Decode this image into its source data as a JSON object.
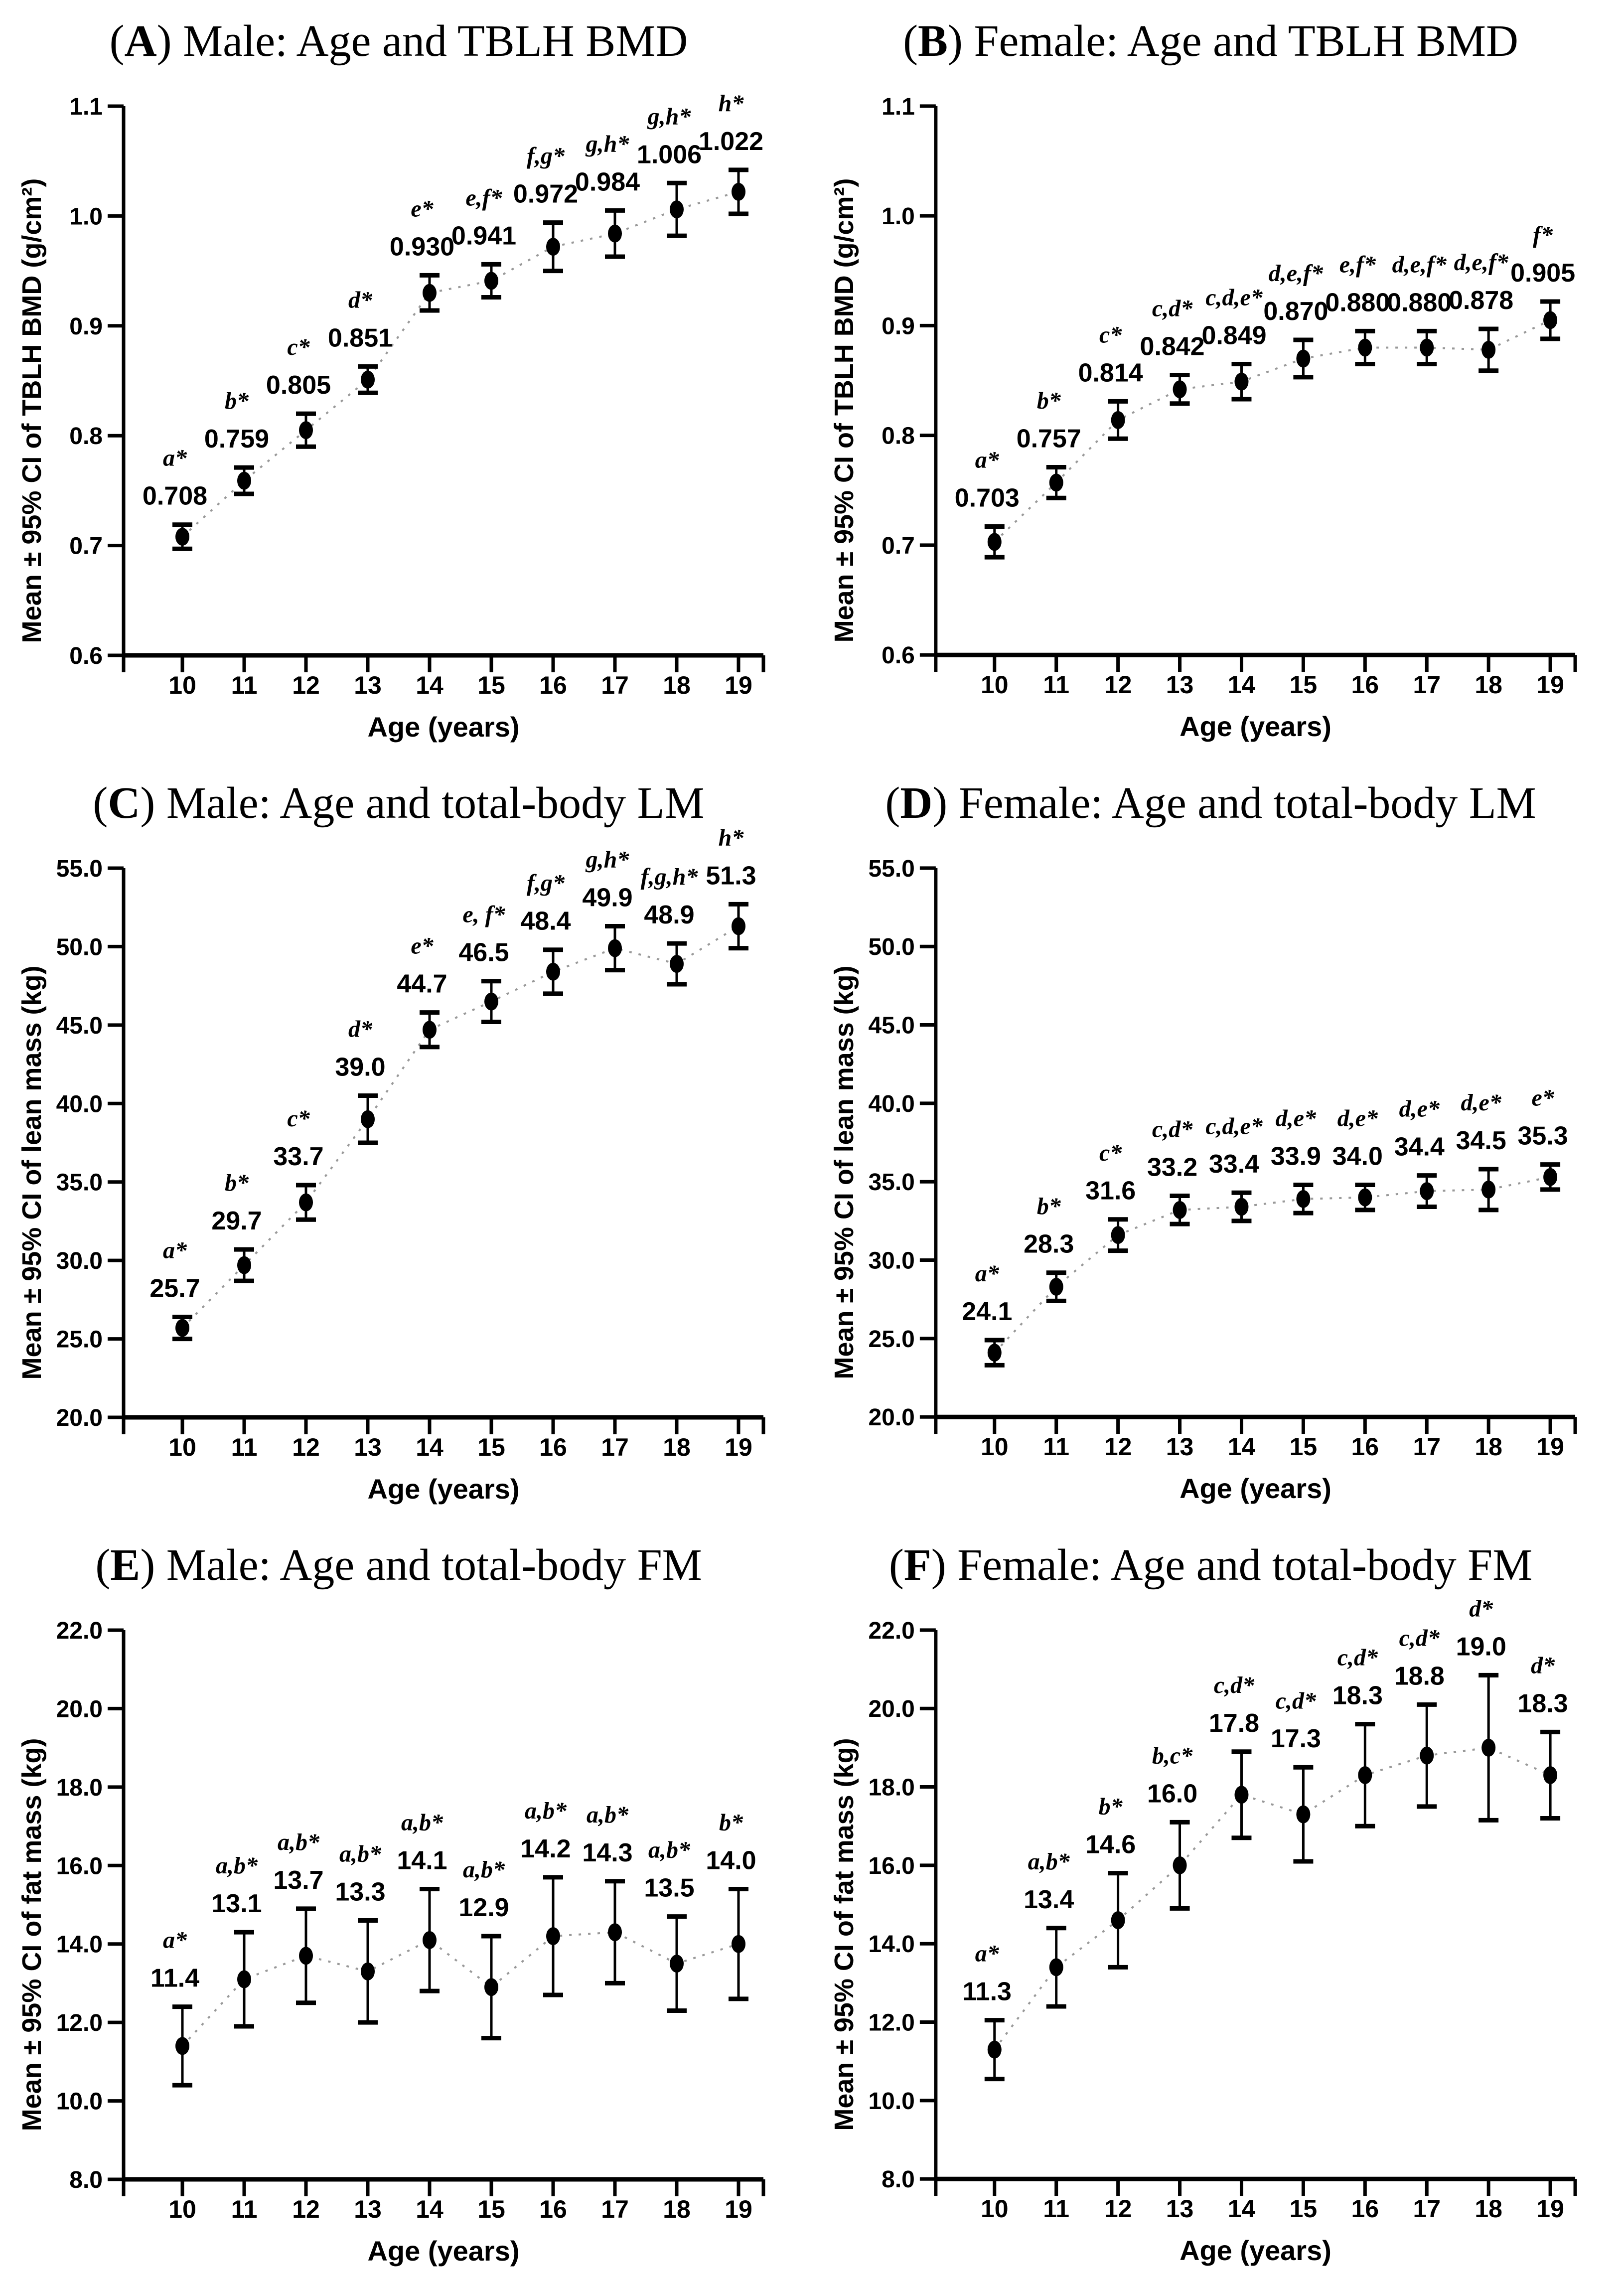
{
  "page": {
    "background": "#ffffff",
    "text_color": "#000000",
    "trend_line_color": "#999999",
    "x_axis_title": "Age (years)"
  },
  "chart_data": [
    {
      "panel": "A",
      "type": "line",
      "title": {
        "prefix": "(",
        "letter": "A",
        "suffix": ") Male: Age and TBLH BMD"
      },
      "xlabel": "Age (years)",
      "ylabel": "Mean ± 95% CI of TBLH BMD (g/cm²)",
      "x": [
        10,
        11,
        12,
        13,
        14,
        15,
        16,
        17,
        18,
        19
      ],
      "xtick_labels": [
        "10",
        "11",
        "12",
        "13",
        "14",
        "15",
        "16",
        "17",
        "18",
        "19"
      ],
      "ylim": [
        0.6,
        1.1
      ],
      "ytick_values": [
        1.1,
        1.0,
        0.9,
        0.8,
        0.7,
        0.6
      ],
      "ytick_labels": [
        "1.1",
        "1.0",
        "0.9",
        "0.8",
        "0.7",
        "0.6"
      ],
      "grid": false,
      "legend": false,
      "series": [
        {
          "name": "mean",
          "values": [
            0.708,
            0.759,
            0.805,
            0.851,
            0.93,
            0.941,
            0.972,
            0.984,
            1.006,
            1.022
          ],
          "ci_halfwidth": [
            0.011,
            0.012,
            0.015,
            0.012,
            0.016,
            0.015,
            0.022,
            0.021,
            0.024,
            0.02
          ],
          "point_labels": [
            "0.708",
            "0.759",
            "0.805",
            "0.851",
            "0.930",
            "0.941",
            "0.972",
            "0.984",
            "1.006",
            "1.022"
          ],
          "sig_letters": [
            "a*",
            "b*",
            "c*",
            "d*",
            "e*",
            "e,f*",
            "f,g*",
            "g,h*",
            "g,h*",
            "h*"
          ]
        }
      ]
    },
    {
      "panel": "B",
      "type": "line",
      "title": {
        "prefix": "(",
        "letter": "B",
        "suffix": ") Female: Age and TBLH BMD"
      },
      "xlabel": "Age (years)",
      "ylabel": "Mean ± 95% CI of TBLH BMD (g/cm²)",
      "x": [
        10,
        11,
        12,
        13,
        14,
        15,
        16,
        17,
        18,
        19
      ],
      "xtick_labels": [
        "10",
        "11",
        "12",
        "13",
        "14",
        "15",
        "16",
        "17",
        "18",
        "19"
      ],
      "ylim": [
        0.6,
        1.1
      ],
      "ytick_values": [
        1.1,
        1.0,
        0.9,
        0.8,
        0.7,
        0.6
      ],
      "ytick_labels": [
        "1.1",
        "1.0",
        "0.9",
        "0.8",
        "0.7",
        "0.6"
      ],
      "grid": false,
      "legend": false,
      "series": [
        {
          "name": "mean",
          "values": [
            0.703,
            0.757,
            0.814,
            0.842,
            0.849,
            0.87,
            0.88,
            0.88,
            0.878,
            0.905
          ],
          "ci_halfwidth": [
            0.014,
            0.014,
            0.017,
            0.013,
            0.016,
            0.017,
            0.015,
            0.015,
            0.019,
            0.017
          ],
          "point_labels": [
            "0.703",
            "0.757",
            "0.814",
            "0.842",
            "0.849",
            "0.870",
            "0.880",
            "0.880",
            "0.878",
            "0.905"
          ],
          "sig_letters": [
            "a*",
            "b*",
            "c*",
            "c,d*",
            "c,d,e*",
            "d,e,f*",
            "e,f*",
            "d,e,f*",
            "d,e,f*",
            "f*"
          ]
        }
      ]
    },
    {
      "panel": "C",
      "type": "line",
      "title": {
        "prefix": "(",
        "letter": "C",
        "suffix": ") Male: Age and total-body LM"
      },
      "xlabel": "Age (years)",
      "ylabel": "Mean ± 95% CI of lean mass (kg)",
      "x": [
        10,
        11,
        12,
        13,
        14,
        15,
        16,
        17,
        18,
        19
      ],
      "xtick_labels": [
        "10",
        "11",
        "12",
        "13",
        "14",
        "15",
        "16",
        "17",
        "18",
        "19"
      ],
      "ylim": [
        20.0,
        55.0
      ],
      "ytick_values": [
        55.0,
        50.0,
        45.0,
        40.0,
        35.0,
        30.0,
        25.0,
        20.0
      ],
      "ytick_labels": [
        "55.0",
        "50.0",
        "45.0",
        "40.0",
        "35.0",
        "30.0",
        "25.0",
        "20.0"
      ],
      "grid": false,
      "legend": false,
      "series": [
        {
          "name": "mean",
          "values": [
            25.7,
            29.7,
            33.7,
            39.0,
            44.7,
            46.5,
            48.4,
            49.9,
            48.9,
            51.3
          ],
          "ci_halfwidth": [
            0.7,
            1.0,
            1.1,
            1.5,
            1.1,
            1.3,
            1.4,
            1.4,
            1.3,
            1.4
          ],
          "point_labels": [
            "25.7",
            "29.7",
            "33.7",
            "39.0",
            "44.7",
            "46.5",
            "48.4",
            "49.9",
            "48.9",
            "51.3"
          ],
          "sig_letters": [
            "a*",
            "b*",
            "c*",
            "d*",
            "e*",
            "e, f*",
            "f,g*",
            "g,h*",
            "f,g,h*",
            "h*"
          ]
        }
      ]
    },
    {
      "panel": "D",
      "type": "line",
      "title": {
        "prefix": "(",
        "letter": "D",
        "suffix": ") Female: Age and total-body LM"
      },
      "xlabel": "Age (years)",
      "ylabel": "Mean ± 95% CI of lean mass (kg)",
      "x": [
        10,
        11,
        12,
        13,
        14,
        15,
        16,
        17,
        18,
        19
      ],
      "xtick_labels": [
        "10",
        "11",
        "12",
        "13",
        "14",
        "15",
        "16",
        "17",
        "18",
        "19"
      ],
      "ylim": [
        20.0,
        55.0
      ],
      "ytick_values": [
        55.0,
        50.0,
        45.0,
        40.0,
        35.0,
        30.0,
        25.0,
        20.0
      ],
      "ytick_labels": [
        "55.0",
        "50.0",
        "45.0",
        "40.0",
        "35.0",
        "30.0",
        "25.0",
        "20.0"
      ],
      "grid": false,
      "legend": false,
      "series": [
        {
          "name": "mean",
          "values": [
            24.1,
            28.3,
            31.6,
            33.2,
            33.4,
            33.9,
            34.0,
            34.4,
            34.5,
            35.3
          ],
          "ci_halfwidth": [
            0.8,
            0.9,
            1.0,
            0.9,
            0.9,
            0.9,
            0.8,
            1.0,
            1.3,
            0.8
          ],
          "point_labels": [
            "24.1",
            "28.3",
            "31.6",
            "33.2",
            "33.4",
            "33.9",
            "34.0",
            "34.4",
            "34.5",
            "35.3"
          ],
          "sig_letters": [
            "a*",
            "b*",
            "c*",
            "c,d*",
            "c,d,e*",
            "d,e*",
            "d,e*",
            "d,e*",
            "d,e*",
            "e*"
          ]
        }
      ]
    },
    {
      "panel": "E",
      "type": "line",
      "title": {
        "prefix": "(",
        "letter": "E",
        "suffix": ") Male: Age and total-body FM"
      },
      "xlabel": "Age (years)",
      "ylabel": "Mean ± 95% CI of fat mass (kg)",
      "x": [
        10,
        11,
        12,
        13,
        14,
        15,
        16,
        17,
        18,
        19
      ],
      "xtick_labels": [
        "10",
        "11",
        "12",
        "13",
        "14",
        "15",
        "16",
        "17",
        "18",
        "19"
      ],
      "ylim": [
        8.0,
        22.0
      ],
      "ytick_values": [
        22.0,
        20.0,
        18.0,
        16.0,
        14.0,
        12.0,
        10.0,
        8.0
      ],
      "ytick_labels": [
        "22.0",
        "20.0",
        "18.0",
        "16.0",
        "14.0",
        "12.0",
        "10.0",
        "8.0"
      ],
      "grid": false,
      "legend": false,
      "series": [
        {
          "name": "mean",
          "values": [
            11.4,
            13.1,
            13.7,
            13.3,
            14.1,
            12.9,
            14.2,
            14.3,
            13.5,
            14.0
          ],
          "ci_halfwidth": [
            1.0,
            1.2,
            1.2,
            1.3,
            1.3,
            1.3,
            1.5,
            1.3,
            1.2,
            1.4
          ],
          "point_labels": [
            "11.4",
            "13.1",
            "13.7",
            "13.3",
            "14.1",
            "12.9",
            "14.2",
            "14.3",
            "13.5",
            "14.0"
          ],
          "sig_letters": [
            "a*",
            "a,b*",
            "a,b*",
            "a,b*",
            "a,b*",
            "a,b*",
            "a,b*",
            "a,b*",
            "a,b*",
            "b*"
          ]
        }
      ]
    },
    {
      "panel": "F",
      "type": "line",
      "title": {
        "prefix": "(",
        "letter": "F",
        "suffix": ") Female: Age and total-body FM"
      },
      "xlabel": "Age (years)",
      "ylabel": "Mean ± 95% CI of fat mass (kg)",
      "x": [
        10,
        11,
        12,
        13,
        14,
        15,
        16,
        17,
        18,
        19
      ],
      "xtick_labels": [
        "10",
        "11",
        "12",
        "13",
        "14",
        "15",
        "16",
        "17",
        "18",
        "19"
      ],
      "ylim": [
        8.0,
        22.0
      ],
      "ytick_values": [
        22.0,
        20.0,
        18.0,
        16.0,
        14.0,
        12.0,
        10.0,
        8.0
      ],
      "ytick_labels": [
        "22.0",
        "20.0",
        "18.0",
        "16.0",
        "14.0",
        "12.0",
        "10.0",
        "8.0"
      ],
      "grid": false,
      "legend": false,
      "series": [
        {
          "name": "mean",
          "values": [
            11.3,
            13.4,
            14.6,
            16.0,
            17.8,
            17.3,
            18.3,
            18.8,
            19.0,
            18.3
          ],
          "ci_halfwidth": [
            0.75,
            1.0,
            1.2,
            1.1,
            1.1,
            1.2,
            1.3,
            1.3,
            1.85,
            1.1
          ],
          "point_labels": [
            "11.3",
            "13.4",
            "14.6",
            "16.0",
            "17.8",
            "17.3",
            "18.3",
            "18.8",
            "19.0",
            "18.3"
          ],
          "sig_letters": [
            "a*",
            "a,b*",
            "b*",
            "b,c*",
            "c,d*",
            "c,d*",
            "c,d*",
            "c,d*",
            "d*",
            "d*"
          ]
        }
      ]
    }
  ]
}
